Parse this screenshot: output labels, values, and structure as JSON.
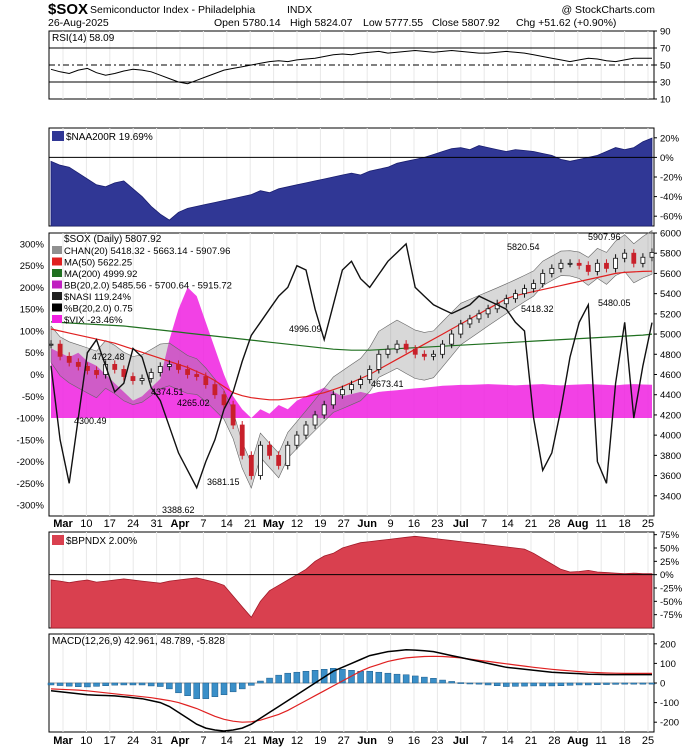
{
  "header": {
    "symbol": "$SOX",
    "name": "Semiconductor Index - Philadelphia",
    "exchange": "INDX",
    "date": "26-Aug-2025",
    "open": "Open 5780.14",
    "high": "High 5824.07",
    "low": "Low 5777.55",
    "close": "Close 5807.92",
    "chg": "Chg +51.62 (+0.90%)",
    "watermark": "@ StockCharts.com"
  },
  "colors": {
    "price_up": "#111111",
    "price_down": "#c8202a",
    "naa200r_fill": "#303795",
    "bpndx_fill": "#d9404f",
    "vix_fill": "#f020e0",
    "ma50": "#e02020",
    "ma200": "#207020",
    "chan_fill": "#909090",
    "bb_fill": "#d8d8e8",
    "macd_line": "#000000",
    "signal_line": "#e02020",
    "histogram": "#3a8fc8",
    "rsi_line": "#000000"
  },
  "x_axis": {
    "labels": [
      "Mar",
      "10",
      "17",
      "24",
      "31",
      "Apr",
      "7",
      "14",
      "21",
      "May",
      "12",
      "19",
      "27",
      "Jun",
      "9",
      "16",
      "23",
      "Jul",
      "7",
      "14",
      "21",
      "28",
      "Aug",
      "11",
      "18",
      "25"
    ],
    "bold": [
      "Mar",
      "Apr",
      "May",
      "Jun",
      "Jul",
      "Aug"
    ]
  },
  "chart_data": [
    {
      "type": "line",
      "panel": "rsi",
      "title": "RSI(14) 58.09",
      "ylim": [
        10,
        90
      ],
      "yticks": [
        "90",
        "70",
        "50",
        "30",
        "10"
      ],
      "overbought": 70,
      "oversold": 30,
      "series": [
        {
          "name": "RSI(14)",
          "values": [
            45,
            42,
            40,
            44,
            46,
            41,
            38,
            40,
            43,
            45,
            44,
            42,
            38,
            34,
            30,
            28,
            32,
            36,
            40,
            44,
            46,
            48,
            50,
            52,
            54,
            55,
            54,
            56,
            57,
            58,
            60,
            62,
            63,
            62,
            64,
            65,
            66,
            64,
            65,
            66,
            67,
            66,
            65,
            66,
            67,
            66,
            65,
            64,
            64,
            65,
            66,
            65,
            64,
            62,
            60,
            58,
            56,
            54,
            56,
            58,
            57,
            55,
            54,
            56,
            58,
            58,
            58
          ]
        }
      ]
    },
    {
      "type": "area",
      "panel": "naa200r",
      "title": "$NAA200R 19.69%",
      "ylim": [
        -70,
        30
      ],
      "yticks": [
        "20%",
        "0%",
        "-20%",
        "-40%",
        "-60%"
      ],
      "series": [
        {
          "name": "$NAA200R",
          "values": [
            -4,
            -8,
            -10,
            -16,
            -22,
            -28,
            -30,
            -26,
            -24,
            -32,
            -40,
            -50,
            -58,
            -64,
            -56,
            -52,
            -50,
            -48,
            -46,
            -44,
            -42,
            -40,
            -38,
            -34,
            -36,
            -32,
            -30,
            -28,
            -26,
            -24,
            -22,
            -20,
            -18,
            -16,
            -18,
            -14,
            -12,
            -10,
            -6,
            -4,
            -2,
            0,
            3,
            6,
            9,
            10,
            8,
            12,
            10,
            8,
            6,
            8,
            7,
            6,
            4,
            2,
            -2,
            -4,
            -2,
            0,
            2,
            6,
            10,
            8,
            10,
            16,
            19.69
          ]
        }
      ]
    },
    {
      "type": "line",
      "panel": "price",
      "title": "$SOX (Daily) 5807.92",
      "ylim": [
        3200,
        6000
      ],
      "yticks_right": [
        "6000",
        "5800",
        "5600",
        "5400",
        "5200",
        "5000",
        "4800",
        "4600",
        "4400",
        "4200",
        "4000",
        "3800",
        "3600",
        "3400"
      ],
      "yticks_left": [
        "300%",
        "250%",
        "200%",
        "150%",
        "100%",
        "50%",
        "0%",
        "-50%",
        "-100%",
        "-150%",
        "-200%",
        "-250%",
        "-300%"
      ],
      "legend": [
        {
          "label": "CHAN(20) 5418.32 - 5663.14 - 5907.96",
          "color": "#909090"
        },
        {
          "label": "MA(50) 5622.25",
          "color": "#e02020"
        },
        {
          "label": "MA(200) 4999.92",
          "color": "#207020"
        },
        {
          "label": "BB(20,2.0) 5485.56 - 5700.64 - 5915.72",
          "color": "#c020c0"
        },
        {
          "label": "$NASI 119.24%",
          "color": "#202020"
        },
        {
          "label": "%B(20,2.0) 0.75",
          "color": "#000000"
        },
        {
          "label": "$VIX -23.46%",
          "color": "#f020e0"
        }
      ],
      "annotations": [
        "5907.96",
        "5820.54",
        "5418.32",
        "5480.05",
        "4996.09",
        "4673.41",
        "4722.48",
        "4374.51",
        "4265.02",
        "4300.49",
        "3681.15",
        "3388.62"
      ],
      "series": [
        {
          "name": "$SOX close",
          "values": [
            4900,
            4780,
            4720,
            4680,
            4640,
            4600,
            4700,
            4650,
            4580,
            4540,
            4560,
            4620,
            4680,
            4700,
            4650,
            4600,
            4580,
            4500,
            4400,
            4300,
            4100,
            3800,
            3600,
            3900,
            3800,
            3700,
            3900,
            4000,
            4100,
            4200,
            4300,
            4400,
            4450,
            4500,
            4550,
            4650,
            4800,
            4850,
            4900,
            4850,
            4800,
            4780,
            4800,
            4900,
            5000,
            5100,
            5150,
            5200,
            5250,
            5300,
            5350,
            5400,
            5450,
            5500,
            5600,
            5650,
            5700,
            5700,
            5680,
            5620,
            5700,
            5650,
            5750,
            5800,
            5700,
            5760,
            5807.92
          ]
        },
        {
          "name": "MA(50)",
          "values": [
            5050,
            5030,
            5010,
            4990,
            4970,
            4950,
            4930,
            4910,
            4880,
            4850,
            4820,
            4790,
            4760,
            4730,
            4700,
            4670,
            4630,
            4590,
            4540,
            4480,
            4420,
            4390,
            4370,
            4360,
            4350,
            4350,
            4360,
            4370,
            4380,
            4400,
            4420,
            4450,
            4480,
            4520,
            4560,
            4600,
            4650,
            4700,
            4750,
            4800,
            4850,
            4900,
            4950,
            5000,
            5050,
            5100,
            5150,
            5200,
            5250,
            5300,
            5350,
            5380,
            5400,
            5420,
            5440,
            5460,
            5480,
            5500,
            5520,
            5540,
            5560,
            5580,
            5600,
            5610,
            5615,
            5620,
            5622.25
          ]
        },
        {
          "name": "MA(200)",
          "values": [
            5120,
            5115,
            5110,
            5105,
            5100,
            5095,
            5090,
            5085,
            5080,
            5070,
            5060,
            5050,
            5040,
            5030,
            5020,
            5010,
            5000,
            4990,
            4980,
            4970,
            4960,
            4950,
            4940,
            4930,
            4920,
            4910,
            4900,
            4890,
            4880,
            4870,
            4860,
            4850,
            4845,
            4840,
            4840,
            4840,
            4845,
            4850,
            4855,
            4860,
            4865,
            4870,
            4875,
            4880,
            4885,
            4890,
            4895,
            4900,
            4905,
            4910,
            4915,
            4920,
            4925,
            4930,
            4935,
            4940,
            4945,
            4950,
            4955,
            4960,
            4965,
            4970,
            4975,
            4980,
            4985,
            4990,
            4999.92
          ]
        },
        {
          "name": "$NASI",
          "values": [
            20,
            -150,
            -250,
            -100,
            50,
            80,
            20,
            -40,
            -20,
            60,
            40,
            -30,
            -60,
            -120,
            -180,
            -220,
            -260,
            -200,
            -150,
            -80,
            -40,
            30,
            90,
            120,
            150,
            180,
            200,
            250,
            240,
            150,
            80,
            160,
            240,
            260,
            220,
            200,
            230,
            260,
            280,
            300,
            200,
            180,
            160,
            150,
            140,
            150,
            160,
            180,
            170,
            160,
            150,
            120,
            100,
            -100,
            -220,
            -180,
            -80,
            40,
            120,
            160,
            -200,
            -250,
            -20,
            120,
            -100,
            20,
            119.24
          ]
        },
        {
          "name": "$VIX",
          "values": [
            60,
            50,
            40,
            50,
            30,
            20,
            0,
            -20,
            -40,
            -60,
            -50,
            -30,
            -10,
            80,
            150,
            200,
            180,
            120,
            60,
            0,
            -50,
            -80,
            -100,
            -80,
            -90,
            -70,
            -80,
            -60,
            -50,
            -40,
            -30,
            -40,
            -50,
            -45,
            -40,
            -45,
            -40,
            -38,
            -36,
            -34,
            -32,
            -30,
            -28,
            -26,
            -25,
            -24,
            -24,
            -23,
            -22,
            -23,
            -24,
            -25,
            -24,
            -23,
            -22,
            -24,
            -25,
            -24,
            -23,
            -22,
            -23,
            -24,
            -25,
            -23,
            -22,
            -23,
            -23.46
          ]
        }
      ]
    },
    {
      "type": "area",
      "panel": "bpndx",
      "title": "$BPNDX 2.00%",
      "ylim": [
        -100,
        80
      ],
      "yticks": [
        "75%",
        "50%",
        "25%",
        "0%",
        "-25%",
        "-50%",
        "-75%"
      ],
      "series": [
        {
          "name": "$BPNDX",
          "values": [
            -10,
            -12,
            -15,
            -12,
            -10,
            -14,
            -12,
            -10,
            -8,
            -10,
            -12,
            -14,
            -16,
            -12,
            -10,
            -8,
            -6,
            -10,
            -14,
            -20,
            -40,
            -60,
            -80,
            -50,
            -30,
            -20,
            -10,
            0,
            10,
            25,
            35,
            40,
            50,
            55,
            60,
            62,
            64,
            66,
            68,
            70,
            72,
            70,
            68,
            66,
            64,
            62,
            60,
            58,
            56,
            54,
            52,
            50,
            48,
            40,
            30,
            20,
            10,
            5,
            6,
            8,
            5,
            4,
            3,
            2,
            3,
            2,
            2.0
          ]
        }
      ]
    },
    {
      "type": "line",
      "panel": "macd",
      "title": "MACD(12,26,9) 42.961, 48.789, -5.828",
      "ylim": [
        -250,
        250
      ],
      "yticks": [
        "200",
        "100",
        "0",
        "-100",
        "-200"
      ],
      "series": [
        {
          "name": "MACD",
          "values": [
            -40,
            -45,
            -50,
            -55,
            -60,
            -62,
            -64,
            -66,
            -70,
            -75,
            -80,
            -90,
            -100,
            -120,
            -150,
            -180,
            -210,
            -230,
            -240,
            -245,
            -240,
            -230,
            -210,
            -180,
            -150,
            -120,
            -90,
            -60,
            -30,
            0,
            30,
            60,
            80,
            100,
            120,
            140,
            150,
            160,
            165,
            170,
            168,
            165,
            160,
            150,
            140,
            130,
            120,
            110,
            100,
            90,
            80,
            75,
            70,
            65,
            60,
            55,
            52,
            50,
            48,
            45,
            44,
            43,
            43,
            43,
            43,
            43,
            42.961
          ]
        },
        {
          "name": "Signal",
          "values": [
            -30,
            -32,
            -34,
            -36,
            -40,
            -45,
            -50,
            -55,
            -60,
            -65,
            -70,
            -75,
            -82,
            -90,
            -100,
            -115,
            -130,
            -150,
            -170,
            -185,
            -195,
            -200,
            -198,
            -190,
            -175,
            -160,
            -140,
            -115,
            -90,
            -65,
            -40,
            -15,
            10,
            35,
            60,
            80,
            95,
            110,
            120,
            128,
            132,
            135,
            136,
            135,
            132,
            128,
            122,
            116,
            110,
            104,
            98,
            92,
            86,
            80,
            75,
            70,
            66,
            62,
            58,
            55,
            53,
            51,
            50,
            49,
            49,
            49,
            48.789
          ]
        },
        {
          "name": "Histogram",
          "values": [
            -10,
            -13,
            -16,
            -19,
            -20,
            -17,
            -14,
            -11,
            -10,
            -10,
            -10,
            -15,
            -18,
            -30,
            -50,
            -65,
            -80,
            -80,
            -70,
            -60,
            -45,
            -30,
            -12,
            10,
            25,
            40,
            50,
            55,
            60,
            65,
            70,
            75,
            70,
            65,
            60,
            60,
            55,
            50,
            45,
            42,
            36,
            30,
            24,
            15,
            8,
            2,
            -2,
            -6,
            -10,
            -14,
            -18,
            -17,
            -16,
            -15,
            -15,
            -15,
            -14,
            -12,
            -10,
            -10,
            -9,
            -8,
            -7,
            -6,
            -6,
            -6,
            -5.828
          ]
        }
      ]
    }
  ]
}
